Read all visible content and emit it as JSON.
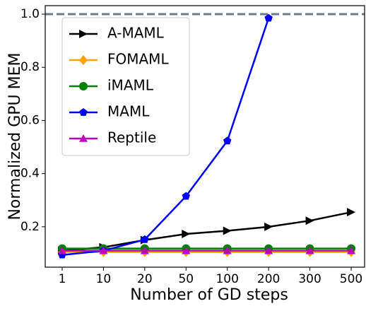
{
  "chart_data": {
    "type": "line",
    "xlabel": "Number of GD steps",
    "ylabel": "Normalized GPU MEM",
    "categories": [
      1,
      10,
      20,
      50,
      100,
      200,
      300,
      500
    ],
    "series": [
      {
        "name": "A-MAML",
        "color": "#000000",
        "marker": "triangle-right",
        "values": [
          0.11,
          0.123,
          0.15,
          0.173,
          0.185,
          0.2,
          0.223,
          0.255
        ]
      },
      {
        "name": "FOMAML",
        "color": "#ffa500",
        "marker": "diamond",
        "values": [
          0.105,
          0.105,
          0.105,
          0.105,
          0.105,
          0.105,
          0.105,
          0.105
        ]
      },
      {
        "name": "iMAML",
        "color": "#008000",
        "marker": "circle",
        "values": [
          0.118,
          0.118,
          0.118,
          0.118,
          0.118,
          0.118,
          0.118,
          0.118
        ]
      },
      {
        "name": "MAML",
        "color": "#0000ff",
        "marker": "pentagon",
        "values": [
          0.094,
          0.11,
          0.152,
          0.315,
          0.523,
          0.985,
          null,
          null
        ]
      },
      {
        "name": "Reptile",
        "color": "#c000c0",
        "marker": "triangle-up",
        "values": [
          0.11,
          0.11,
          0.11,
          0.11,
          0.11,
          0.11,
          0.11,
          0.11
        ]
      }
    ],
    "hline": {
      "value": 1.0,
      "color": "#6b7b8c",
      "style": "dashed"
    },
    "ylim": [
      0.048,
      1.032
    ],
    "yticks": [
      0.2,
      0.4,
      0.6,
      0.8,
      1.0
    ],
    "legend": "upper left",
    "grid": false
  }
}
